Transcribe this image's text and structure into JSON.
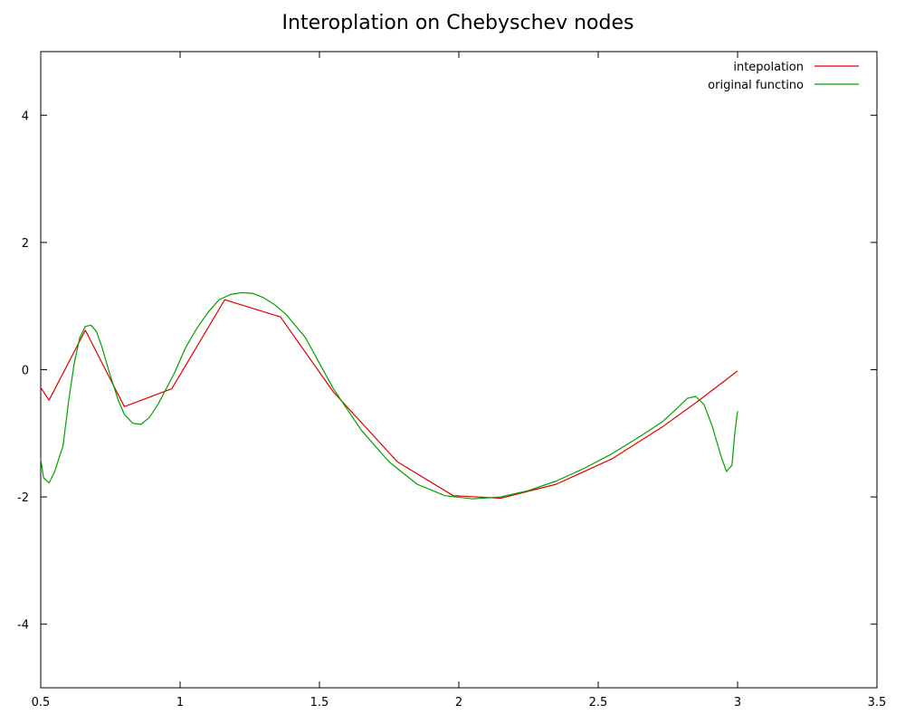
{
  "chart_data": {
    "type": "line",
    "title": "Interoplation on Chebyschev nodes",
    "xlabel": "",
    "ylabel": "",
    "xlim": [
      0.5,
      3.5
    ],
    "ylim": [
      -5,
      5
    ],
    "x_ticks": [
      0.5,
      1,
      1.5,
      2,
      2.5,
      3,
      3.5
    ],
    "x_tick_labels": [
      "0.5",
      "1",
      "1.5",
      "2",
      "2.5",
      "3",
      "3.5"
    ],
    "y_ticks": [
      -4,
      -2,
      0,
      2,
      4
    ],
    "y_tick_labels": [
      "-4",
      "-2",
      "0",
      "2",
      "4"
    ],
    "grid": false,
    "legend_position": "top-right",
    "series": [
      {
        "name": "intepolation",
        "color": "#e00000",
        "x": [
          0.5,
          0.53,
          0.66,
          0.8,
          0.97,
          1.16,
          1.36,
          1.55,
          1.78,
          1.98,
          2.15,
          2.35,
          2.55,
          2.73,
          2.85,
          3.0
        ],
        "y": [
          -0.28,
          -0.48,
          0.62,
          -0.58,
          -0.3,
          1.1,
          0.83,
          -0.35,
          -1.45,
          -1.98,
          -2.02,
          -1.8,
          -1.4,
          -0.9,
          -0.52,
          -0.02
        ]
      },
      {
        "name": "original functino",
        "color": "#00a000",
        "x": [
          0.5,
          0.51,
          0.53,
          0.55,
          0.58,
          0.6,
          0.62,
          0.64,
          0.66,
          0.68,
          0.7,
          0.72,
          0.75,
          0.78,
          0.8,
          0.83,
          0.86,
          0.89,
          0.92,
          0.95,
          0.98,
          1.02,
          1.06,
          1.1,
          1.14,
          1.18,
          1.22,
          1.26,
          1.3,
          1.34,
          1.38,
          1.45,
          1.55,
          1.65,
          1.75,
          1.85,
          1.95,
          2.05,
          2.15,
          2.25,
          2.35,
          2.45,
          2.55,
          2.65,
          2.73,
          2.78,
          2.82,
          2.85,
          2.88,
          2.91,
          2.94,
          2.96,
          2.98,
          2.99,
          3.0
        ],
        "y": [
          -1.4,
          -1.7,
          -1.78,
          -1.6,
          -1.2,
          -0.5,
          0.1,
          0.5,
          0.68,
          0.7,
          0.6,
          0.35,
          -0.1,
          -0.5,
          -0.7,
          -0.84,
          -0.86,
          -0.75,
          -0.55,
          -0.3,
          -0.05,
          0.35,
          0.65,
          0.9,
          1.1,
          1.18,
          1.21,
          1.2,
          1.13,
          1.02,
          0.87,
          0.5,
          -0.3,
          -0.95,
          -1.45,
          -1.8,
          -1.98,
          -2.03,
          -2.0,
          -1.9,
          -1.75,
          -1.55,
          -1.32,
          -1.05,
          -0.82,
          -0.62,
          -0.45,
          -0.42,
          -0.55,
          -0.9,
          -1.35,
          -1.6,
          -1.5,
          -1.0,
          -0.65
        ]
      }
    ]
  }
}
